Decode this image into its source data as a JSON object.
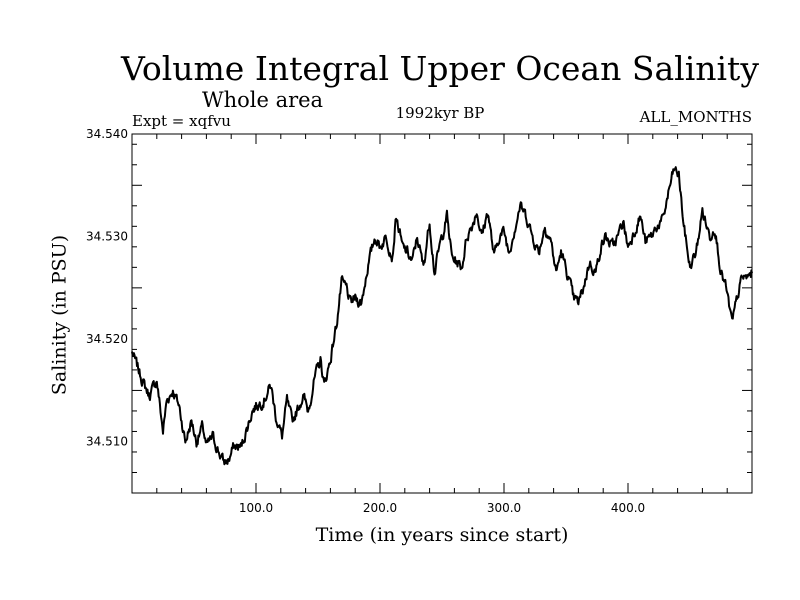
{
  "chart_data": {
    "type": "line",
    "title": "Volume Integral Upper Ocean Salinity",
    "subtitle": "Whole area",
    "experiment": "Expt = xqfvu",
    "period": "1992kyr BP",
    "months": "ALL_MONTHS",
    "xlabel": "Time (in years since start)",
    "ylabel": "Salinity (in PSU)",
    "xlim": [
      0,
      500
    ],
    "ylim": [
      34.505,
      34.54
    ],
    "x_ticks": [
      100,
      200,
      300,
      400
    ],
    "x_tick_labels": [
      "100.0",
      "200.0",
      "300.0",
      "400.0"
    ],
    "y_ticks": [
      34.51,
      34.52,
      34.53,
      34.54
    ],
    "y_tick_labels": [
      "34.510",
      "34.520",
      "34.530",
      "34.540"
    ],
    "series": [
      {
        "name": "salinity",
        "x": [
          0,
          10,
          14,
          20,
          25,
          28,
          33,
          38,
          43,
          48,
          52,
          57,
          60,
          65,
          70,
          74,
          78,
          82,
          88,
          92,
          97,
          100,
          106,
          112,
          116,
          121,
          125,
          129,
          133,
          138,
          142,
          147,
          152,
          155,
          160,
          165,
          169,
          173,
          176,
          180,
          185,
          190,
          196,
          200,
          205,
          210,
          213,
          218,
          222,
          226,
          230,
          235,
          240,
          244,
          248,
          254,
          258,
          262,
          266,
          270,
          274,
          278,
          282,
          287,
          292,
          296,
          300,
          304,
          309,
          313,
          318,
          323,
          328,
          333,
          338,
          342,
          346,
          352,
          356,
          360,
          364,
          369,
          374,
          378,
          382,
          387,
          392,
          396,
          400,
          405,
          410,
          414,
          419,
          423,
          428,
          433,
          437,
          441,
          445,
          450,
          455,
          460,
          466,
          470,
          475,
          479,
          484,
          488,
          492,
          496,
          500
        ],
        "values": [
          34.5187,
          34.5155,
          34.5145,
          34.516,
          34.511,
          34.514,
          34.515,
          34.5135,
          34.51,
          34.512,
          34.51,
          34.5115,
          34.5095,
          34.5105,
          34.509,
          34.508,
          34.5082,
          34.5095,
          34.5095,
          34.511,
          34.513,
          34.5135,
          34.514,
          34.5155,
          34.5125,
          34.5105,
          34.514,
          34.512,
          34.513,
          34.5145,
          34.513,
          34.516,
          34.518,
          34.5155,
          34.518,
          34.5215,
          34.5255,
          34.525,
          34.5235,
          34.524,
          34.5235,
          34.527,
          34.53,
          34.529,
          34.53,
          34.528,
          34.532,
          34.529,
          34.5285,
          34.5275,
          34.53,
          34.527,
          34.5315,
          34.5265,
          34.529,
          34.532,
          34.528,
          34.5275,
          34.527,
          34.53,
          34.531,
          34.5325,
          34.53,
          34.5325,
          34.528,
          34.53,
          34.5305,
          34.5285,
          34.531,
          34.533,
          34.532,
          34.53,
          34.5285,
          34.531,
          34.5295,
          34.5265,
          34.5285,
          34.526,
          34.524,
          34.5235,
          34.525,
          34.5275,
          34.5265,
          34.529,
          34.53,
          34.529,
          34.53,
          34.5315,
          34.529,
          34.5305,
          34.532,
          34.5295,
          34.53,
          34.531,
          34.5315,
          34.5345,
          34.5365,
          34.536,
          34.531,
          34.527,
          34.5285,
          34.5325,
          34.53,
          34.531,
          34.5265,
          34.525,
          34.5215,
          34.524,
          34.526,
          34.526,
          34.5265
        ]
      }
    ]
  }
}
